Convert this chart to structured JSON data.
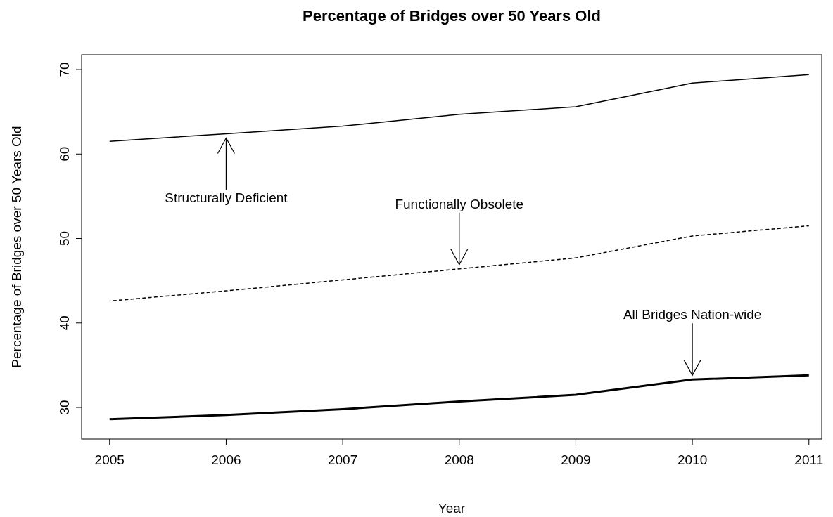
{
  "chart_data": {
    "type": "line",
    "title": "Percentage of Bridges over 50 Years Old",
    "xlabel": "Year",
    "ylabel": "Percentage of Bridges over 50 Years Old",
    "x": [
      2005,
      2006,
      2007,
      2008,
      2009,
      2010,
      2011
    ],
    "series": [
      {
        "color": "#000000",
        "line_style": "solid",
        "values": [
          61.5,
          62.4,
          63.3,
          64.7,
          65.6,
          68.4,
          69.4
        ]
      },
      {
        "color": "#000000",
        "line_style": "dashed",
        "values": [
          42.6,
          43.8,
          45.1,
          46.4,
          47.7,
          50.3,
          51.5
        ]
      },
      {
        "color": "#000000",
        "line_style": "solid",
        "values": [
          28.6,
          29.1,
          29.8,
          30.7,
          31.5,
          33.3,
          33.8
        ]
      }
    ],
    "xlim": [
      2004.76,
      2011.11
    ],
    "ylim": [
      26.26,
      71.75
    ],
    "xticks": [
      2005,
      2006,
      2007,
      2008,
      2009,
      2010,
      2011
    ],
    "yticks": [
      30,
      40,
      50,
      60,
      70
    ],
    "grid": false,
    "marker": "none",
    "annotations": [
      {
        "text": "Structurally Deficient",
        "x": 2006,
        "y": 62.4
      },
      {
        "text": "Functionally Obsolete",
        "x": 2008,
        "y": 46.4
      },
      {
        "text": "All Bridges Nation-wide",
        "x": 2010,
        "y": 33.3
      }
    ]
  }
}
